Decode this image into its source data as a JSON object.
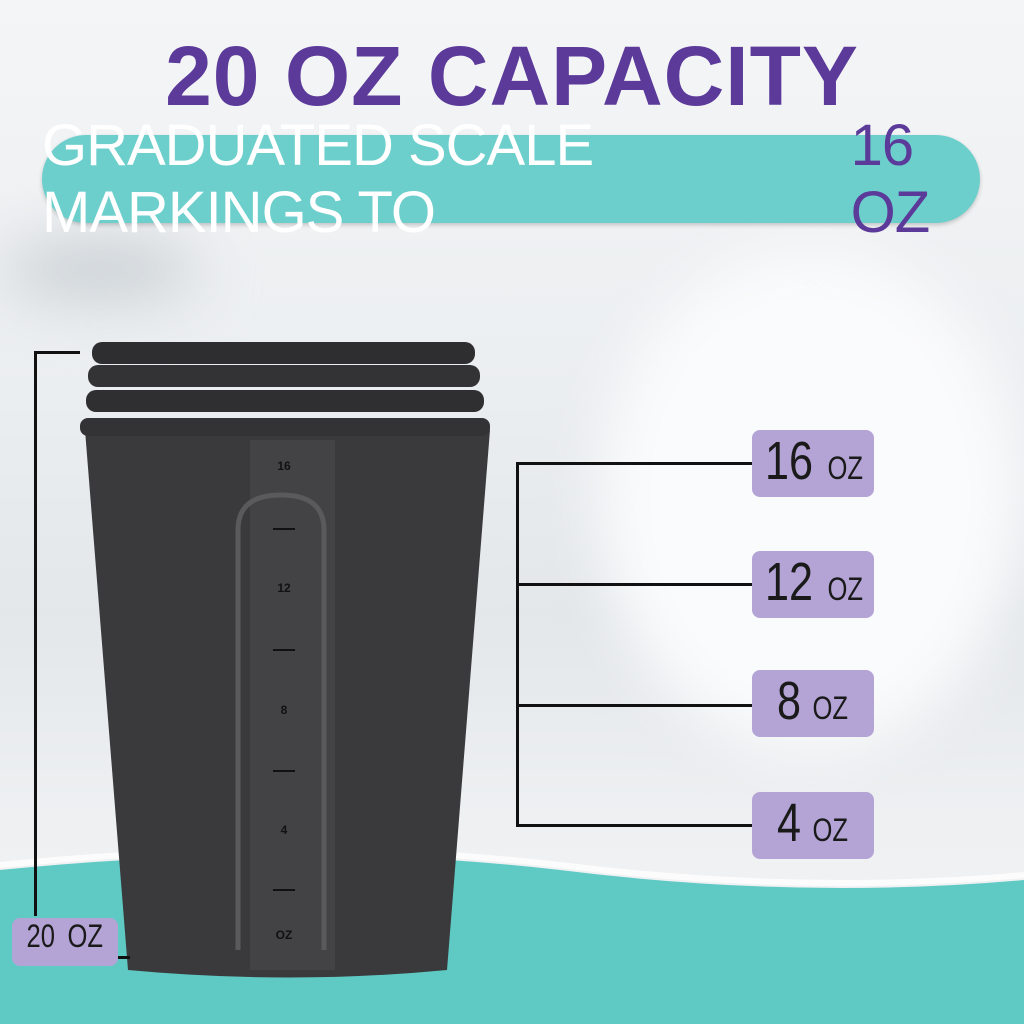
{
  "headline": {
    "capacity": "20 OZ CAPACITY"
  },
  "banner": {
    "text": "GRADUATED SCALE MARKINGS TO",
    "highlight": "16 OZ"
  },
  "total_badge": {
    "value": "20",
    "unit": "OZ"
  },
  "scale_badges": [
    {
      "value": "16",
      "unit": "OZ"
    },
    {
      "value": "12",
      "unit": "OZ"
    },
    {
      "value": "8",
      "unit": "OZ"
    },
    {
      "value": "4",
      "unit": "OZ"
    }
  ],
  "cup_markings": [
    "16",
    "12",
    "8",
    "4",
    "OZ"
  ],
  "colors": {
    "purple": "#5b3a9a",
    "teal": "#6ccfcc",
    "lavender": "#b4a4d6",
    "cup": "#3a3a3c"
  }
}
